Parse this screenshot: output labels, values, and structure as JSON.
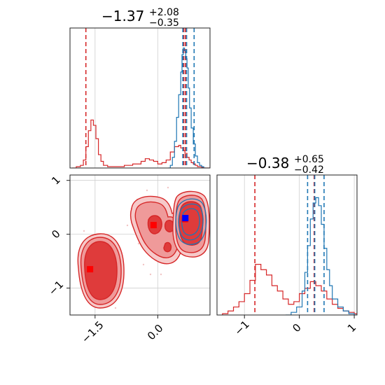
{
  "chart_data": [
    {
      "type": "histogram",
      "panel": "param-1-marginal",
      "title": {
        "value": "−1.37",
        "upper": "+2.08",
        "lower": "−0.35"
      },
      "xlim": [
        -2.1,
        1.25
      ],
      "ylim": [
        0,
        1.05
      ],
      "grid": true,
      "series": [
        {
          "color": "#d62728",
          "x": [
            -2.05,
            -1.95,
            -1.85,
            -1.78,
            -1.72,
            -1.66,
            -1.6,
            -1.54,
            -1.48,
            -1.42,
            -1.36,
            -1.3,
            -1.2,
            -1.0,
            -0.8,
            -0.6,
            -0.4,
            -0.3,
            -0.2,
            -0.1,
            0.0,
            0.1,
            0.2,
            0.3,
            0.4,
            0.5,
            0.55,
            0.6,
            0.65,
            0.7,
            0.75,
            0.8,
            0.85,
            0.9,
            0.95,
            1.0,
            1.05,
            1.1,
            1.2
          ],
          "values": [
            0,
            0.01,
            0.02,
            0.06,
            0.16,
            0.28,
            0.36,
            0.32,
            0.22,
            0.1,
            0.05,
            0.02,
            0.01,
            0.01,
            0.02,
            0.03,
            0.05,
            0.07,
            0.06,
            0.05,
            0.03,
            0.04,
            0.06,
            0.12,
            0.16,
            0.17,
            0.15,
            0.13,
            0.11,
            0.08,
            0.06,
            0.04,
            0.03,
            0.02,
            0.01,
            0.01,
            0.005,
            0,
            0
          ],
          "quantiles": [
            -1.72,
            0.62,
            0.66
          ]
        },
        {
          "color": "#1f77b4",
          "x": [
            0.25,
            0.3,
            0.35,
            0.4,
            0.45,
            0.5,
            0.55,
            0.58,
            0.61,
            0.64,
            0.67,
            0.7,
            0.73,
            0.76,
            0.8,
            0.85,
            0.9,
            0.95,
            1.0,
            1.05,
            1.1
          ],
          "values": [
            0,
            0.02,
            0.08,
            0.2,
            0.38,
            0.55,
            0.72,
            0.85,
            0.9,
            0.88,
            0.82,
            0.75,
            0.6,
            0.45,
            0.3,
            0.18,
            0.09,
            0.04,
            0.02,
            0.01,
            0
          ],
          "quantiles": [
            0.6,
            0.69,
            0.87
          ]
        }
      ]
    },
    {
      "type": "histogram",
      "panel": "param-2-marginal",
      "title": {
        "value": "−0.38",
        "upper": "+0.65",
        "lower": "−0.42"
      },
      "xlim": [
        -1.5,
        1.05
      ],
      "ylim": [
        0,
        1.05
      ],
      "grid": true,
      "x_ticks": [
        "−1",
        "0",
        "1"
      ],
      "series": [
        {
          "color": "#d62728",
          "x": [
            -1.4,
            -1.3,
            -1.2,
            -1.1,
            -1.0,
            -0.9,
            -0.8,
            -0.7,
            -0.6,
            -0.5,
            -0.4,
            -0.3,
            -0.2,
            -0.1,
            0.0,
            0.1,
            0.2,
            0.3,
            0.4,
            0.5,
            0.6,
            0.7,
            0.8,
            0.9,
            1.0
          ],
          "values": [
            0.01,
            0.03,
            0.06,
            0.1,
            0.16,
            0.26,
            0.38,
            0.34,
            0.3,
            0.22,
            0.18,
            0.12,
            0.08,
            0.1,
            0.16,
            0.2,
            0.25,
            0.22,
            0.18,
            0.12,
            0.08,
            0.05,
            0.03,
            0.02,
            0.01
          ],
          "quantiles": [
            -0.81,
            0.27
          ]
        },
        {
          "color": "#1f77b4",
          "x": [
            -0.25,
            -0.15,
            -0.05,
            0.05,
            0.1,
            0.15,
            0.2,
            0.25,
            0.3,
            0.35,
            0.4,
            0.45,
            0.5,
            0.55,
            0.6,
            0.7,
            0.8,
            0.9,
            1.0
          ],
          "values": [
            0,
            0.02,
            0.06,
            0.18,
            0.32,
            0.52,
            0.72,
            0.84,
            0.88,
            0.82,
            0.68,
            0.5,
            0.34,
            0.22,
            0.12,
            0.06,
            0.03,
            0.01,
            0
          ],
          "quantiles": [
            0.15,
            0.28,
            0.45
          ]
        }
      ]
    },
    {
      "type": "contour",
      "panel": "joint-2d",
      "xlim": [
        -2.1,
        1.25
      ],
      "ylim": [
        -1.5,
        1.1
      ],
      "x_ticks": [
        "−1.5",
        "0.0"
      ],
      "y_ticks": [
        "−1",
        "0",
        "1"
      ],
      "grid": true,
      "series": [
        {
          "color": "#d62728",
          "points": [
            [
              -1.62,
              -0.65
            ],
            [
              -0.1,
              0.17
            ],
            [
              0.65,
              0.28
            ]
          ]
        },
        {
          "color": "#1f77b4",
          "points": [
            [
              0.66,
              0.3
            ]
          ]
        }
      ]
    }
  ]
}
